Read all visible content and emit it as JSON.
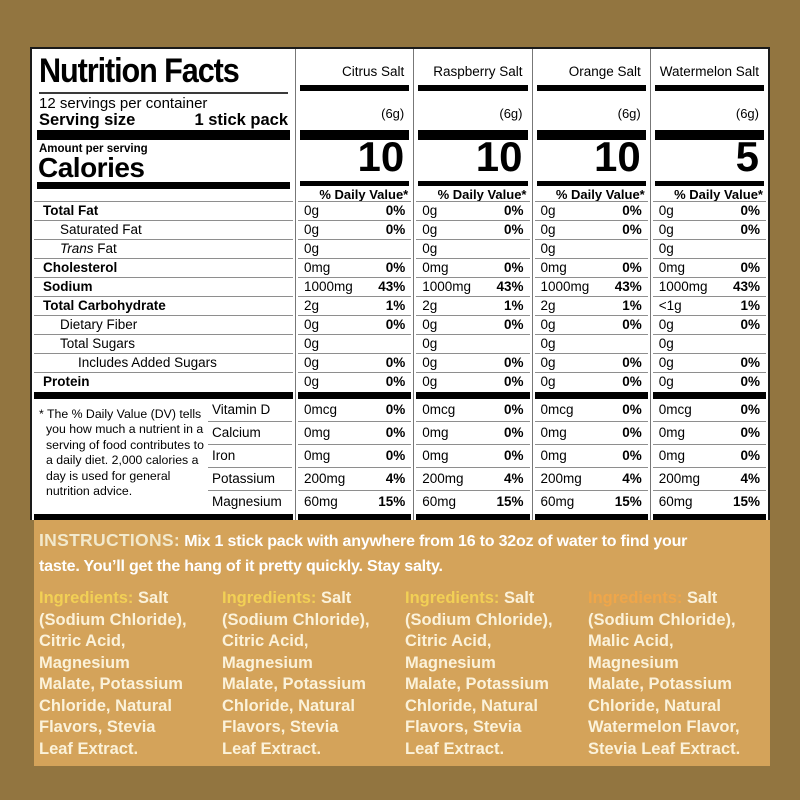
{
  "colors": {
    "outer_background": "#927540",
    "band_background": "#D4A35A",
    "panel_background": "#FFFFFF",
    "panel_text": "#000000",
    "instructions_label": "#F2E9CC",
    "instructions_text": "#FFFFFF",
    "ingredients_text": "#FBF2DA"
  },
  "nutrition_panel": {
    "title": "Nutrition Facts",
    "servings_per_container": "12 servings per container",
    "serving_size_label": "Serving size",
    "serving_size_value": "1 stick pack",
    "amount_per_serving_label": "Amount per serving",
    "calories_label": "Calories",
    "daily_value_header": "% Daily Value*",
    "flavors": [
      {
        "name": "Citrus Salt",
        "serving_weight": "(6g)",
        "calories": "10"
      },
      {
        "name": "Raspberry Salt",
        "serving_weight": "(6g)",
        "calories": "10"
      },
      {
        "name": "Orange Salt",
        "serving_weight": "(6g)",
        "calories": "10"
      },
      {
        "name": "Watermelon Salt",
        "serving_weight": "(6g)",
        "calories": "5"
      }
    ],
    "nutrient_rows": [
      {
        "label": "Total Fat",
        "style": "bold",
        "amounts": [
          "0g",
          "0g",
          "0g",
          "0g"
        ],
        "dv": [
          "0%",
          "0%",
          "0%",
          "0%"
        ]
      },
      {
        "label": "Saturated Fat",
        "style": "indent",
        "amounts": [
          "0g",
          "0g",
          "0g",
          "0g"
        ],
        "dv": [
          "0%",
          "0%",
          "0%",
          "0%"
        ]
      },
      {
        "label": "Trans Fat",
        "style": "indent italic-first",
        "amounts": [
          "0g",
          "0g",
          "0g",
          "0g"
        ],
        "dv": [
          "",
          "",
          "",
          ""
        ]
      },
      {
        "label": "Cholesterol",
        "style": "bold",
        "amounts": [
          "0mg",
          "0mg",
          "0mg",
          "0mg"
        ],
        "dv": [
          "0%",
          "0%",
          "0%",
          "0%"
        ]
      },
      {
        "label": "Sodium",
        "style": "bold",
        "amounts": [
          "1000mg",
          "1000mg",
          "1000mg",
          "1000mg"
        ],
        "dv": [
          "43%",
          "43%",
          "43%",
          "43%"
        ]
      },
      {
        "label": "Total Carbohydrate",
        "style": "bold",
        "amounts": [
          "2g",
          "2g",
          "2g",
          "<1g"
        ],
        "dv": [
          "1%",
          "1%",
          "1%",
          "1%"
        ]
      },
      {
        "label": "Dietary Fiber",
        "style": "indent",
        "amounts": [
          "0g",
          "0g",
          "0g",
          "0g"
        ],
        "dv": [
          "0%",
          "0%",
          "0%",
          "0%"
        ]
      },
      {
        "label": "Total Sugars",
        "style": "indent",
        "amounts": [
          "0g",
          "0g",
          "0g",
          "0g"
        ],
        "dv": [
          "",
          "",
          "",
          ""
        ]
      },
      {
        "label": "Includes Added Sugars",
        "style": "indent2",
        "amounts": [
          "0g",
          "0g",
          "0g",
          "0g"
        ],
        "dv": [
          "0%",
          "0%",
          "0%",
          "0%"
        ]
      },
      {
        "label": "Protein",
        "style": "bold",
        "amounts": [
          "0g",
          "0g",
          "0g",
          "0g"
        ],
        "dv": [
          "0%",
          "0%",
          "0%",
          "0%"
        ]
      }
    ],
    "footnote": "* The % Daily Value (DV) tells you how much a nutrient in a serving of food contributes to a daily diet. 2,000 calories a day is used for general nutrition advice.",
    "micronutrient_rows": [
      {
        "label": "Vitamin D",
        "amounts": [
          "0mcg",
          "0mcg",
          "0mcg",
          "0mcg"
        ],
        "dv": [
          "0%",
          "0%",
          "0%",
          "0%"
        ]
      },
      {
        "label": "Calcium",
        "amounts": [
          "0mg",
          "0mg",
          "0mg",
          "0mg"
        ],
        "dv": [
          "0%",
          "0%",
          "0%",
          "0%"
        ]
      },
      {
        "label": "Iron",
        "amounts": [
          "0mg",
          "0mg",
          "0mg",
          "0mg"
        ],
        "dv": [
          "0%",
          "0%",
          "0%",
          "0%"
        ]
      },
      {
        "label": "Potassium",
        "amounts": [
          "200mg",
          "200mg",
          "200mg",
          "200mg"
        ],
        "dv": [
          "4%",
          "4%",
          "4%",
          "4%"
        ]
      },
      {
        "label": "Magnesium",
        "amounts": [
          "60mg",
          "60mg",
          "60mg",
          "60mg"
        ],
        "dv": [
          "15%",
          "15%",
          "15%",
          "15%"
        ]
      }
    ]
  },
  "instructions": {
    "label": "INSTRUCTIONS:",
    "line1": "Mix 1 stick pack with anywhere from 16 to 32oz of water to find your",
    "line2": "taste. You’ll get the hang of it pretty quickly. Stay salty."
  },
  "ingredients": [
    {
      "label": "Ingredients:",
      "label_color": "#F2D055",
      "lines": [
        "Salt",
        "(Sodium Chloride),",
        "Citric Acid,",
        "Magnesium",
        "Malate, Potassium",
        "Chloride, Natural",
        "Flavors, Stevia",
        "Leaf Extract."
      ]
    },
    {
      "label": "Ingredients:",
      "label_color": "#F2D055",
      "lines": [
        "Salt",
        "(Sodium Chloride),",
        "Citric Acid,",
        "Magnesium",
        "Malate, Potassium",
        "Chloride, Natural",
        "Flavors, Stevia",
        "Leaf Extract."
      ]
    },
    {
      "label": "Ingredients:",
      "label_color": "#F2D055",
      "lines": [
        "Salt",
        "(Sodium Chloride),",
        "Citric Acid,",
        "Magnesium",
        "Malate, Potassium",
        "Chloride, Natural",
        "Flavors, Stevia",
        "Leaf Extract."
      ]
    },
    {
      "label": "Ingredients:",
      "label_color": "#EFA64A",
      "lines": [
        "Salt",
        "(Sodium Chloride),",
        "Malic Acid,",
        "Magnesium",
        "Malate, Potassium",
        "Chloride, Natural",
        "Watermelon Flavor,",
        "Stevia Leaf Extract."
      ]
    }
  ]
}
